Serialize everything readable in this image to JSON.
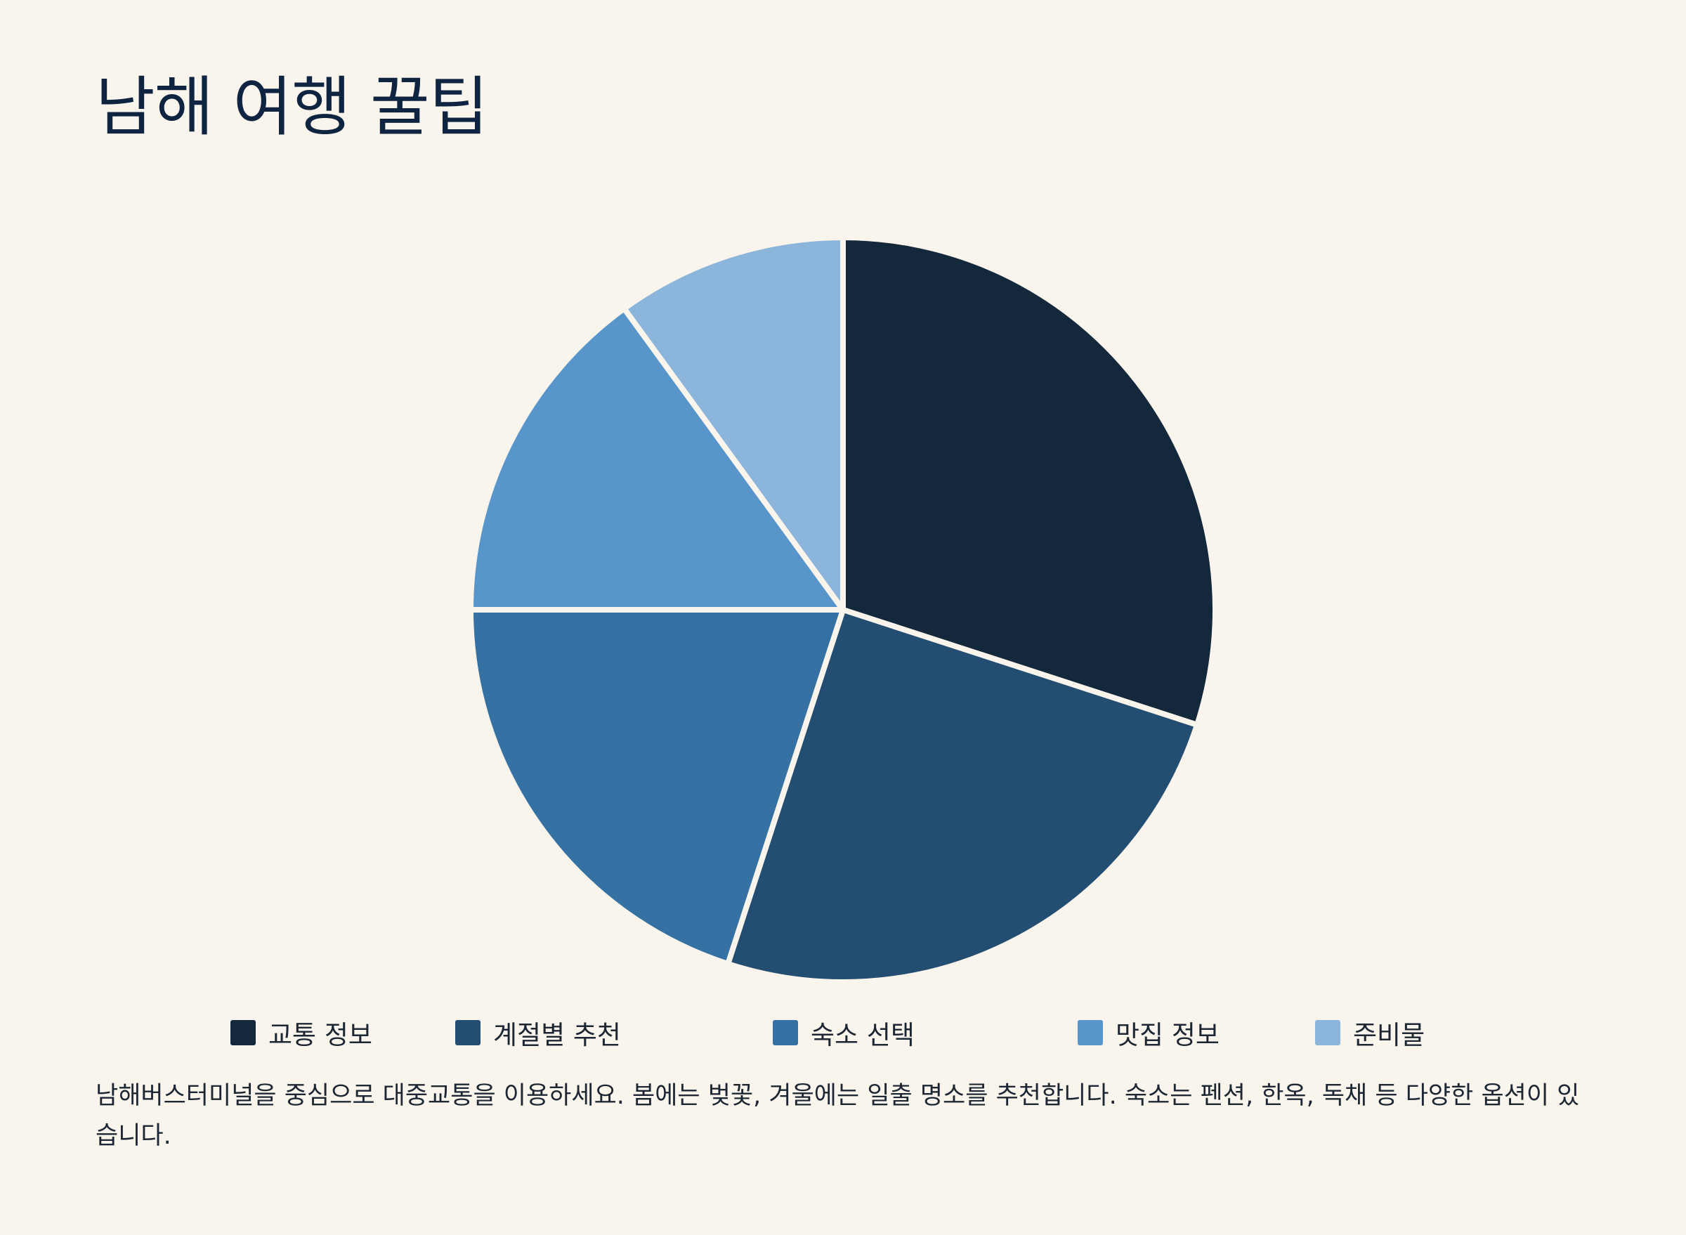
{
  "title": "남해 여행 꿀팁",
  "note": "남해버스터미널을 중심으로 대중교통을 이용하세요. 봄에는 벚꽃, 겨울에는 일출 명소를 추천합니다. 숙소는 펜션, 한옥, 독채 등 다양한 옵션이 있습니다.",
  "background": "#f9f4ec",
  "chart_data": {
    "type": "pie",
    "title": "",
    "categories": [
      "교통 정보",
      "계절별 추천",
      "숙소 선택",
      "맛집 정보",
      "준비물"
    ],
    "values": [
      30,
      25,
      20,
      15,
      10
    ],
    "colors": [
      "#13283a",
      "#234d71",
      "#3571a3",
      "#5795ca",
      "#8bb5db"
    ],
    "start_angle": "12 o'clock",
    "direction": "clockwise",
    "legend_placement": "bottom"
  }
}
